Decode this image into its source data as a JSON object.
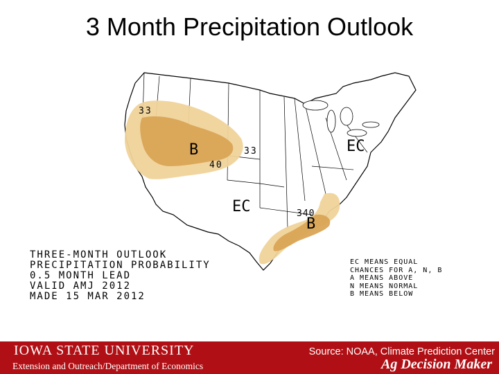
{
  "slide": {
    "title": "3 Month Precipitation Outlook"
  },
  "map": {
    "contour_labels": {
      "west_outer": "33",
      "west_central": "33",
      "west_inner": "40",
      "gulf_value": "340"
    },
    "region_labels": {
      "west_below": "B",
      "east_ec": "EC",
      "south_ec": "EC",
      "gulf_below": "B"
    },
    "colors": {
      "below_33": "#f0d39a",
      "below_40": "#d9a556",
      "land": "#ffffff",
      "lines": "#000000"
    }
  },
  "outlook_text": {
    "line1": "THREE-MONTH OUTLOOK",
    "line2": "PRECIPITATION PROBABILITY",
    "line3": "0.5 MONTH LEAD",
    "line4": "VALID AMJ 2012",
    "line5": "MADE 15 MAR 2012"
  },
  "legend_text": {
    "line1": "EC MEANS EQUAL",
    "line2": "CHANCES FOR A, N, B",
    "line3": "A MEANS ABOVE",
    "line4": "N MEANS NORMAL",
    "line5": "B MEANS BELOW"
  },
  "footer": {
    "university": "IOWA STATE UNIVERSITY",
    "subtitle": "Extension and Outreach/Department of Economics",
    "source": "Source: NOAA, Climate Prediction Center",
    "brand": "Ag Decision Maker",
    "brand_color": "#b01015"
  }
}
